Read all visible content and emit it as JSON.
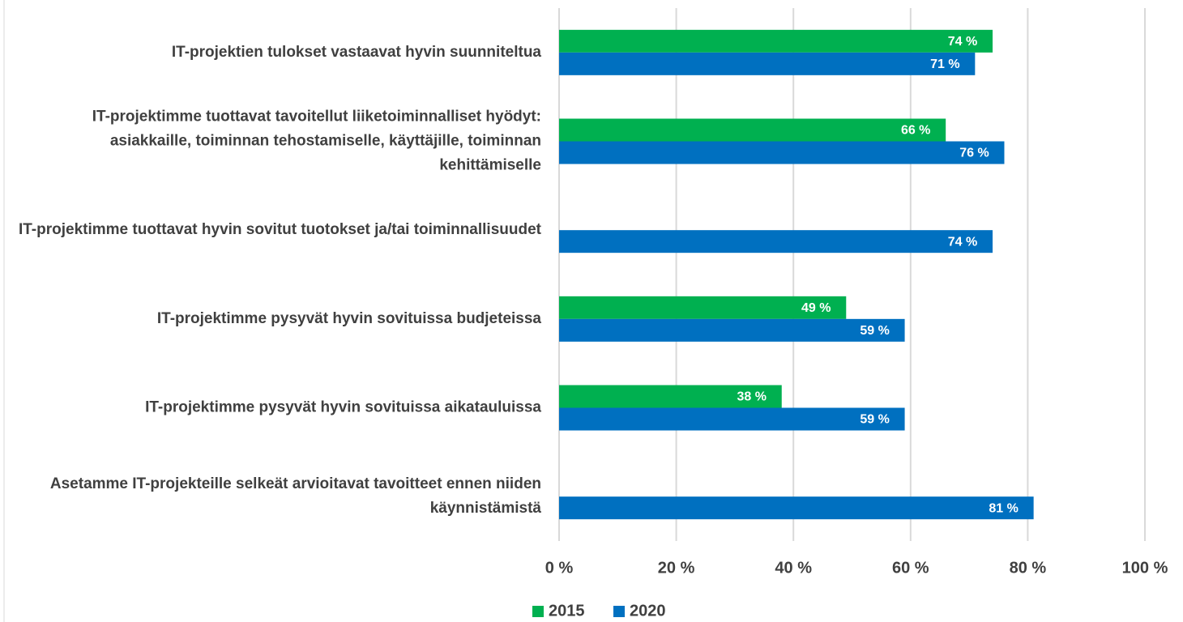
{
  "chart_data": {
    "type": "barh",
    "categories": [
      "IT-projektien tulokset vastaavat hyvin suunniteltua",
      "IT-projektimme tuottavat tavoitellut liiketoiminnalliset hyödyt: asiakkaille, toiminnan tehostamiselle, käyttäjille, toiminnan kehittämiselle",
      "IT-projektimme tuottavat hyvin sovitut tuotokset ja/tai toiminnallisuudet",
      "IT-projektimme pysyvät hyvin sovituissa budjeteissa",
      "IT-projektimme pysyvät hyvin sovituissa aikatauluissa",
      "Asetamme IT-projekteille selkeät arvioitavat tavoitteet ennen niiden käynnistämistä"
    ],
    "series": [
      {
        "name": "2015",
        "color": "#00b050",
        "values": [
          74,
          66,
          null,
          49,
          38,
          null
        ],
        "value_labels": [
          "74 %",
          "66 %",
          null,
          "49 %",
          "38 %",
          null
        ]
      },
      {
        "name": "2020",
        "color": "#0070c0",
        "values": [
          71,
          76,
          74,
          59,
          59,
          81
        ],
        "value_labels": [
          "71 %",
          "76 %",
          "74 %",
          "59 %",
          "59 %",
          "81 %"
        ]
      }
    ],
    "xlim": [
      0,
      100
    ],
    "xticks": [
      {
        "value": 0,
        "label": "0 %"
      },
      {
        "value": 20,
        "label": "20 %"
      },
      {
        "value": 40,
        "label": "40 %"
      },
      {
        "value": 60,
        "label": "60 %"
      },
      {
        "value": 80,
        "label": "80 %"
      },
      {
        "value": 100,
        "label": "100 %"
      }
    ],
    "grid": true,
    "legend": "bottom"
  }
}
